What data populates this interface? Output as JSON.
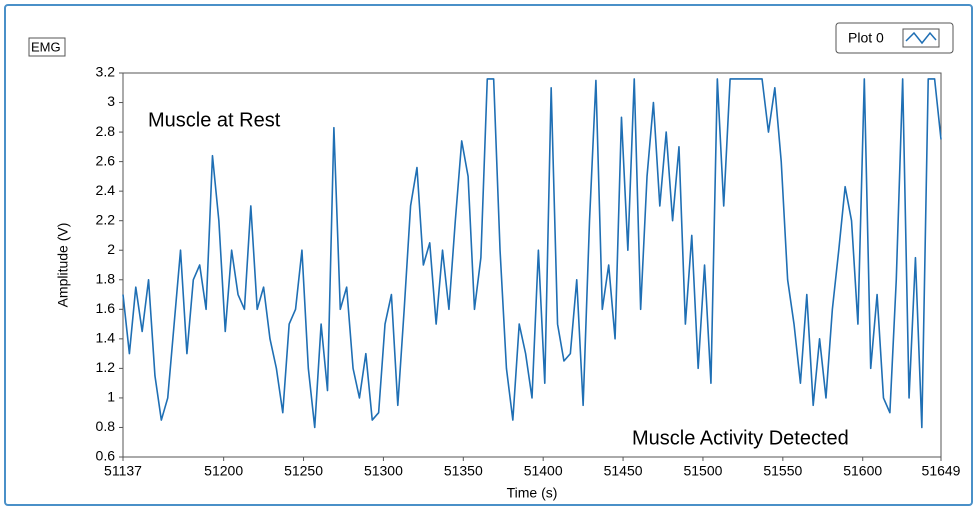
{
  "chart_data": {
    "type": "line",
    "label": "EMG",
    "legend_label": "Plot 0",
    "x_label": "Time (s)",
    "y_label": "Amplitude (V)",
    "annotations": [
      "Muscle at Rest",
      "Muscle Activity Detected"
    ],
    "xlim": [
      51137,
      51649
    ],
    "ylim": [
      0.6,
      3.2
    ],
    "xticks": [
      51137,
      51200,
      51250,
      51300,
      51350,
      51400,
      51450,
      51500,
      51550,
      51600,
      51649
    ],
    "yticks": [
      0.6,
      0.8,
      1,
      1.2,
      1.4,
      1.6,
      1.8,
      2,
      2.2,
      2.4,
      2.6,
      2.8,
      3,
      3.2
    ],
    "grid": false,
    "x": [
      51137,
      51141,
      51145,
      51149,
      51153,
      51157,
      51161,
      51165,
      51169,
      51173,
      51177,
      51181,
      51185,
      51189,
      51193,
      51197,
      51201,
      51205,
      51209,
      51213,
      51217,
      51221,
      51225,
      51229,
      51233,
      51237,
      51241,
      51245,
      51249,
      51253,
      51257,
      51261,
      51265,
      51269,
      51273,
      51277,
      51281,
      51285,
      51289,
      51293,
      51297,
      51301,
      51305,
      51309,
      51313,
      51317,
      51321,
      51325,
      51329,
      51333,
      51337,
      51341,
      51345,
      51349,
      51353,
      51357,
      51361,
      51365,
      51369,
      51373,
      51377,
      51381,
      51385,
      51389,
      51393,
      51397,
      51401,
      51405,
      51409,
      51413,
      51417,
      51421,
      51425,
      51429,
      51433,
      51437,
      51441,
      51445,
      51449,
      51453,
      51457,
      51461,
      51465,
      51469,
      51473,
      51477,
      51481,
      51485,
      51489,
      51493,
      51497,
      51501,
      51505,
      51509,
      51513,
      51517,
      51521,
      51525,
      51529,
      51533,
      51537,
      51541,
      51545,
      51549,
      51553,
      51557,
      51561,
      51565,
      51569,
      51573,
      51577,
      51581,
      51585,
      51589,
      51593,
      51597,
      51601,
      51605,
      51609,
      51613,
      51617,
      51621,
      51625,
      51629,
      51633,
      51637,
      51641,
      51645,
      51649
    ],
    "series": [
      {
        "name": "Plot 0",
        "color": "#1f6fb4",
        "values": [
          1.7,
          1.3,
          1.75,
          1.45,
          1.8,
          1.15,
          0.85,
          1.0,
          1.5,
          2.0,
          1.3,
          1.8,
          1.9,
          1.6,
          2.64,
          2.2,
          1.45,
          2.0,
          1.7,
          1.6,
          2.3,
          1.6,
          1.75,
          1.4,
          1.2,
          0.9,
          1.5,
          1.6,
          2.0,
          1.2,
          0.8,
          1.5,
          1.05,
          2.83,
          1.6,
          1.75,
          1.2,
          1.0,
          1.3,
          0.85,
          0.9,
          1.5,
          1.7,
          0.95,
          1.6,
          2.3,
          2.56,
          1.9,
          2.05,
          1.5,
          2.0,
          1.6,
          2.2,
          2.74,
          2.5,
          1.6,
          1.95,
          3.16,
          3.16,
          2.0,
          1.2,
          0.85,
          1.5,
          1.3,
          1.0,
          2.0,
          1.1,
          3.1,
          1.5,
          1.25,
          1.3,
          1.8,
          0.95,
          2.2,
          3.15,
          1.6,
          1.9,
          1.4,
          2.9,
          2.0,
          3.16,
          1.6,
          2.5,
          3.0,
          2.3,
          2.8,
          2.2,
          2.7,
          1.5,
          2.1,
          1.2,
          1.9,
          1.1,
          3.16,
          2.3,
          3.16,
          3.16,
          3.16,
          3.16,
          3.16,
          3.16,
          2.8,
          3.1,
          2.6,
          1.8,
          1.5,
          1.1,
          1.7,
          0.95,
          1.4,
          1.0,
          1.6,
          2.0,
          2.43,
          2.2,
          1.5,
          3.16,
          1.2,
          1.7,
          1.0,
          0.9,
          1.8,
          3.16,
          1.0,
          1.95,
          0.8,
          3.16,
          3.16,
          2.75
        ]
      }
    ]
  }
}
